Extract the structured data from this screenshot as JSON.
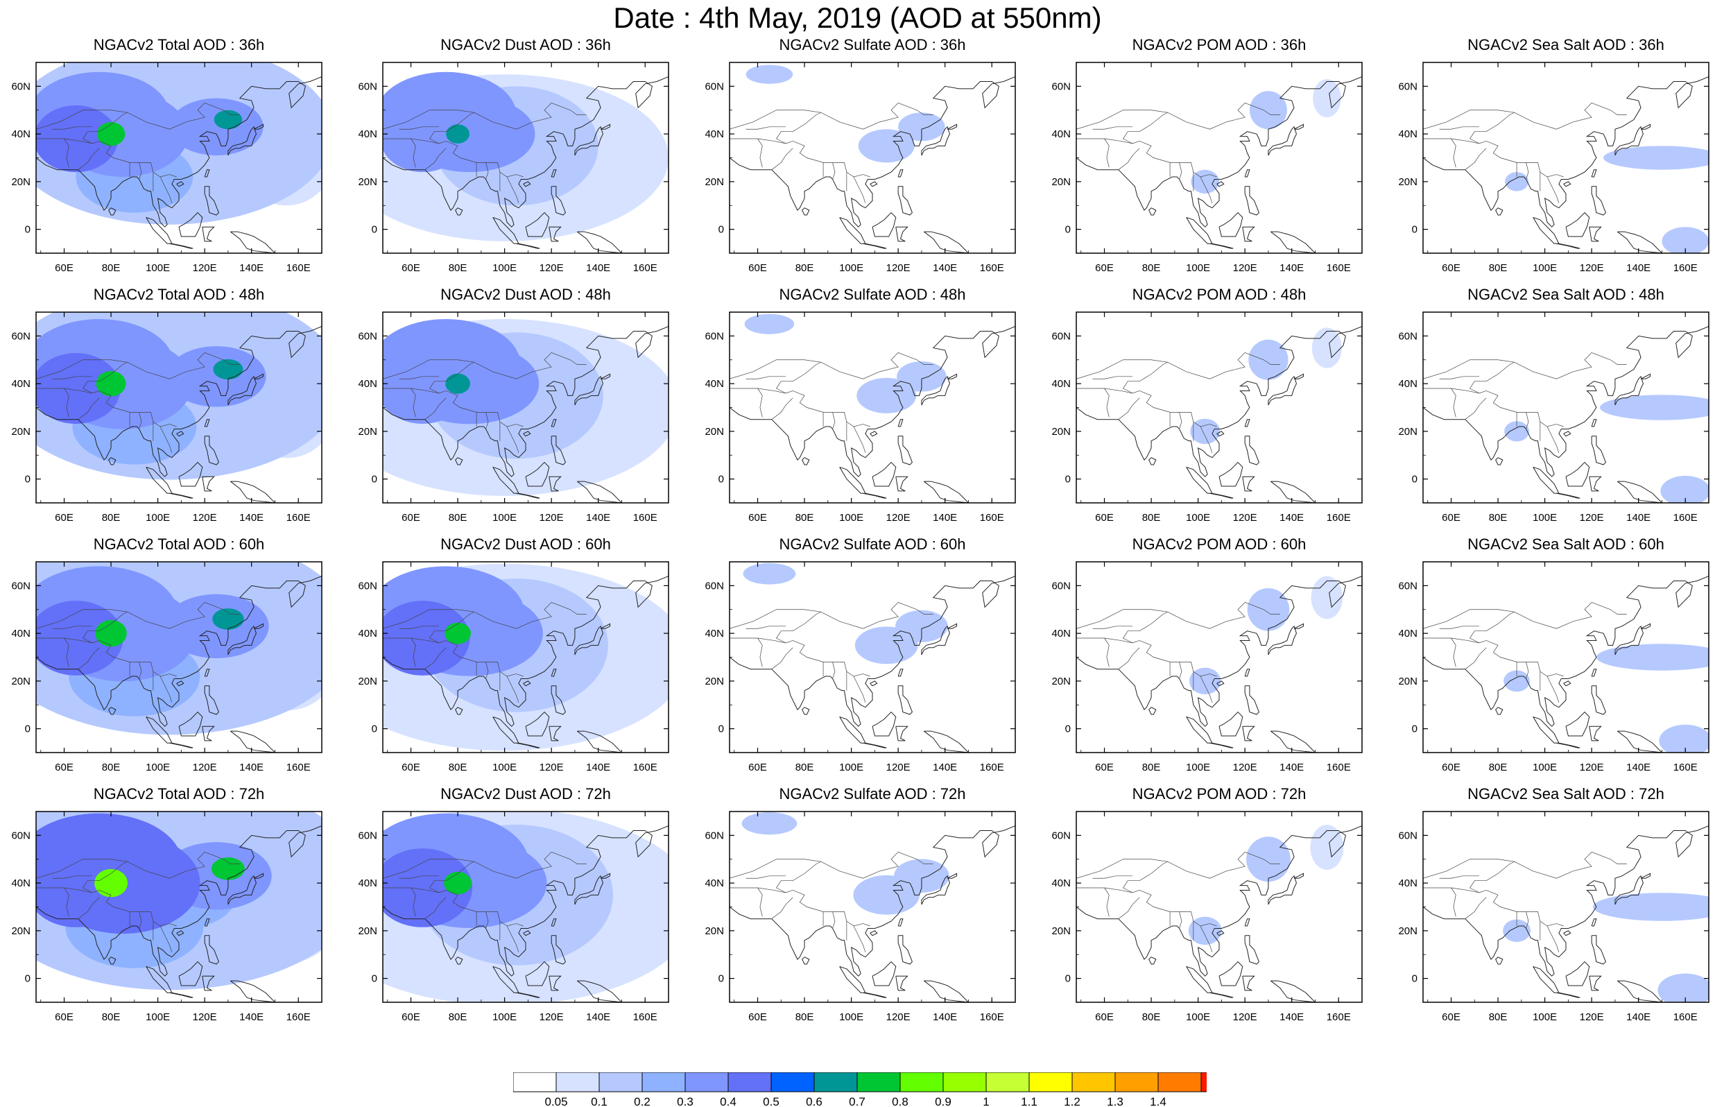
{
  "title": "Date : 4th May, 2019 (AOD at 550nm)",
  "panel_titles": [
    [
      "NGACv2 Total AOD : 36h",
      "NGACv2 Dust AOD : 36h",
      "NGACv2 Sulfate AOD : 36h",
      "NGACv2 POM AOD : 36h",
      "NGACv2 Sea Salt AOD : 36h"
    ],
    [
      "NGACv2 Total AOD : 48h",
      "NGACv2 Dust AOD : 48h",
      "NGACv2 Sulfate AOD : 48h",
      "NGACv2 POM AOD : 48h",
      "NGACv2 Sea Salt AOD : 48h"
    ],
    [
      "NGACv2 Total AOD : 60h",
      "NGACv2 Dust AOD : 60h",
      "NGACv2 Sulfate AOD : 60h",
      "NGACv2 POM AOD : 60h",
      "NGACv2 Sea Salt AOD : 60h"
    ],
    [
      "NGACv2 Total AOD : 72h",
      "NGACv2 Dust AOD : 72h",
      "NGACv2 Sulfate AOD : 72h",
      "NGACv2 POM AOD : 72h",
      "NGACv2 Sea Salt  AOD : 72h"
    ]
  ],
  "map_extent": {
    "lon": [
      48,
      170
    ],
    "lat": [
      -10,
      70
    ]
  },
  "lon_ticks": [
    60,
    80,
    100,
    120,
    140,
    160
  ],
  "lon_tick_labels": [
    "60E",
    "80E",
    "100E",
    "120E",
    "140E",
    "160E"
  ],
  "lat_ticks": [
    0,
    20,
    40,
    60
  ],
  "lat_tick_labels": [
    "0",
    "20N",
    "40N",
    "60N"
  ],
  "colorbar": {
    "levels": [
      "0.05",
      "0.1",
      "0.2",
      "0.3",
      "0.4",
      "0.5",
      "0.6",
      "0.7",
      "0.8",
      "0.9",
      "1",
      "1.1",
      "1.2",
      "1.3",
      "1.4"
    ],
    "colors": [
      "#ffffff",
      "#d6e2ff",
      "#b5c9ff",
      "#8eb2ff",
      "#7f96ff",
      "#6370f8",
      "#0063ff",
      "#009696",
      "#00c633",
      "#63ff00",
      "#96ff00",
      "#c6ff33",
      "#ffff00",
      "#ffc600",
      "#ffa000",
      "#ff7c00",
      "#ff1900"
    ]
  },
  "fields": {
    "total": [
      {
        "lon": 75,
        "lat": 48,
        "rlon": 30,
        "rlat": 18,
        "v": 0.35
      },
      {
        "lon": 85,
        "lat": 40,
        "rlon": 28,
        "rlat": 18,
        "v": 0.35
      },
      {
        "lon": 65,
        "lat": 38,
        "rlon": 18,
        "rlat": 14,
        "v": 0.4
      },
      {
        "lon": 80,
        "lat": 40,
        "rlon": 6,
        "rlat": 5,
        "v": 0.72
      },
      {
        "lon": 125,
        "lat": 43,
        "rlon": 20,
        "rlat": 12,
        "v": 0.32
      },
      {
        "lon": 130,
        "lat": 46,
        "rlon": 6,
        "rlat": 4,
        "v": 0.62
      },
      {
        "lon": 90,
        "lat": 22,
        "rlon": 25,
        "rlat": 15,
        "v": 0.22
      },
      {
        "lon": 110,
        "lat": 35,
        "rlon": 20,
        "rlat": 12,
        "v": 0.18
      },
      {
        "lon": 105,
        "lat": 40,
        "rlon": 70,
        "rlat": 38,
        "v": 0.11
      },
      {
        "lon": 155,
        "lat": 30,
        "rlon": 20,
        "rlat": 20,
        "v": 0.07
      }
    ],
    "dust": [
      {
        "lon": 75,
        "lat": 48,
        "rlon": 30,
        "rlat": 18,
        "v": 0.33
      },
      {
        "lon": 85,
        "lat": 40,
        "rlon": 28,
        "rlat": 16,
        "v": 0.3
      },
      {
        "lon": 65,
        "lat": 38,
        "rlon": 18,
        "rlat": 14,
        "v": 0.38
      },
      {
        "lon": 80,
        "lat": 40,
        "rlon": 5,
        "rlat": 4,
        "v": 0.65
      },
      {
        "lon": 105,
        "lat": 35,
        "rlon": 35,
        "rlat": 25,
        "v": 0.12
      },
      {
        "lon": 100,
        "lat": 30,
        "rlon": 70,
        "rlat": 35,
        "v": 0.08
      }
    ],
    "sulfate": [
      {
        "lon": 115,
        "lat": 35,
        "rlon": 12,
        "rlat": 7,
        "v": 0.12
      },
      {
        "lon": 130,
        "lat": 43,
        "rlon": 10,
        "rlat": 6,
        "v": 0.1
      },
      {
        "lon": 65,
        "lat": 65,
        "rlon": 10,
        "rlat": 4,
        "v": 0.1
      }
    ],
    "pom": [
      {
        "lon": 103,
        "lat": 20,
        "rlon": 6,
        "rlat": 5,
        "v": 0.12
      },
      {
        "lon": 130,
        "lat": 50,
        "rlon": 8,
        "rlat": 8,
        "v": 0.1
      },
      {
        "lon": 155,
        "lat": 55,
        "rlon": 6,
        "rlat": 8,
        "v": 0.08
      }
    ],
    "seasalt": [
      {
        "lon": 150,
        "lat": 30,
        "rlon": 25,
        "rlat": 5,
        "v": 0.1
      },
      {
        "lon": 160,
        "lat": -5,
        "rlon": 10,
        "rlat": 6,
        "v": 0.12
      },
      {
        "lon": 88,
        "lat": 20,
        "rlon": 5,
        "rlat": 4,
        "v": 0.1
      }
    ]
  }
}
